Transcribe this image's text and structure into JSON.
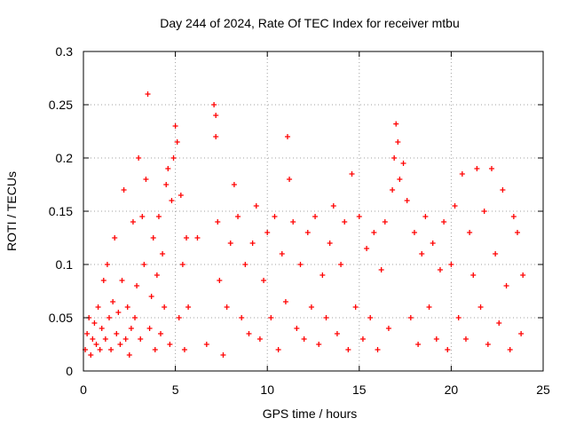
{
  "chart_data": {
    "type": "scatter",
    "title": "Day 244 of 2024, Rate Of TEC Index for receiver mtbu",
    "xlabel": "GPS time / hours",
    "ylabel": "ROTI / TECUs",
    "xlim": [
      0,
      25
    ],
    "ylim": [
      0,
      0.3
    ],
    "x_ticks": [
      "0",
      "5",
      "10",
      "15",
      "20",
      "25"
    ],
    "y_ticks": [
      "0",
      "0.05",
      "0.1",
      "0.15",
      "0.2",
      "0.25",
      "0.3"
    ],
    "grid": true,
    "marker": "+",
    "color": "#ff0000",
    "series": [
      {
        "points": [
          [
            0.1,
            0.02
          ],
          [
            0.2,
            0.035
          ],
          [
            0.3,
            0.05
          ],
          [
            0.4,
            0.015
          ],
          [
            0.5,
            0.03
          ],
          [
            0.6,
            0.045
          ],
          [
            0.7,
            0.025
          ],
          [
            0.8,
            0.06
          ],
          [
            0.9,
            0.02
          ],
          [
            1.0,
            0.04
          ],
          [
            1.1,
            0.085
          ],
          [
            1.2,
            0.03
          ],
          [
            1.3,
            0.1
          ],
          [
            1.4,
            0.05
          ],
          [
            1.5,
            0.02
          ],
          [
            1.6,
            0.065
          ],
          [
            1.7,
            0.125
          ],
          [
            1.8,
            0.035
          ],
          [
            1.9,
            0.055
          ],
          [
            2.0,
            0.025
          ],
          [
            2.1,
            0.085
          ],
          [
            2.2,
            0.17
          ],
          [
            2.3,
            0.03
          ],
          [
            2.4,
            0.06
          ],
          [
            2.5,
            0.015
          ],
          [
            2.6,
            0.04
          ],
          [
            2.7,
            0.14
          ],
          [
            2.8,
            0.05
          ],
          [
            2.9,
            0.08
          ],
          [
            3.0,
            0.2
          ],
          [
            3.1,
            0.03
          ],
          [
            3.2,
            0.145
          ],
          [
            3.3,
            0.1
          ],
          [
            3.4,
            0.18
          ],
          [
            3.5,
            0.26
          ],
          [
            3.6,
            0.04
          ],
          [
            3.7,
            0.07
          ],
          [
            3.8,
            0.125
          ],
          [
            3.9,
            0.02
          ],
          [
            4.0,
            0.09
          ],
          [
            4.1,
            0.145
          ],
          [
            4.2,
            0.035
          ],
          [
            4.3,
            0.11
          ],
          [
            4.4,
            0.06
          ],
          [
            4.5,
            0.175
          ],
          [
            4.6,
            0.19
          ],
          [
            4.7,
            0.025
          ],
          [
            4.8,
            0.16
          ],
          [
            4.9,
            0.2
          ],
          [
            5.0,
            0.23
          ],
          [
            5.1,
            0.215
          ],
          [
            5.2,
            0.05
          ],
          [
            5.3,
            0.165
          ],
          [
            5.4,
            0.1
          ],
          [
            5.5,
            0.02
          ],
          [
            5.6,
            0.125
          ],
          [
            5.7,
            0.06
          ],
          [
            6.2,
            0.125
          ],
          [
            6.7,
            0.025
          ],
          [
            7.1,
            0.25
          ],
          [
            7.2,
            0.24
          ],
          [
            7.2,
            0.22
          ],
          [
            7.3,
            0.14
          ],
          [
            7.4,
            0.085
          ],
          [
            7.6,
            0.015
          ],
          [
            7.8,
            0.06
          ],
          [
            8.0,
            0.12
          ],
          [
            8.2,
            0.175
          ],
          [
            8.4,
            0.145
          ],
          [
            8.6,
            0.05
          ],
          [
            8.8,
            0.1
          ],
          [
            9.0,
            0.035
          ],
          [
            9.2,
            0.12
          ],
          [
            9.4,
            0.155
          ],
          [
            9.6,
            0.03
          ],
          [
            9.8,
            0.085
          ],
          [
            10.0,
            0.13
          ],
          [
            10.2,
            0.05
          ],
          [
            10.4,
            0.145
          ],
          [
            10.6,
            0.02
          ],
          [
            10.8,
            0.11
          ],
          [
            11.0,
            0.065
          ],
          [
            11.1,
            0.22
          ],
          [
            11.2,
            0.18
          ],
          [
            11.4,
            0.14
          ],
          [
            11.6,
            0.04
          ],
          [
            11.8,
            0.1
          ],
          [
            12.0,
            0.03
          ],
          [
            12.2,
            0.13
          ],
          [
            12.4,
            0.06
          ],
          [
            12.6,
            0.145
          ],
          [
            12.8,
            0.025
          ],
          [
            13.0,
            0.09
          ],
          [
            13.2,
            0.05
          ],
          [
            13.4,
            0.12
          ],
          [
            13.6,
            0.155
          ],
          [
            13.8,
            0.035
          ],
          [
            14.0,
            0.1
          ],
          [
            14.2,
            0.14
          ],
          [
            14.4,
            0.02
          ],
          [
            14.6,
            0.185
          ],
          [
            14.8,
            0.06
          ],
          [
            15.0,
            0.145
          ],
          [
            15.2,
            0.03
          ],
          [
            15.4,
            0.115
          ],
          [
            15.6,
            0.05
          ],
          [
            15.8,
            0.13
          ],
          [
            16.0,
            0.02
          ],
          [
            16.2,
            0.095
          ],
          [
            16.4,
            0.14
          ],
          [
            16.6,
            0.04
          ],
          [
            16.8,
            0.17
          ],
          [
            16.9,
            0.2
          ],
          [
            17.0,
            0.232
          ],
          [
            17.1,
            0.215
          ],
          [
            17.2,
            0.18
          ],
          [
            17.4,
            0.195
          ],
          [
            17.6,
            0.16
          ],
          [
            17.8,
            0.05
          ],
          [
            18.0,
            0.13
          ],
          [
            18.2,
            0.025
          ],
          [
            18.4,
            0.11
          ],
          [
            18.6,
            0.145
          ],
          [
            18.8,
            0.06
          ],
          [
            19.0,
            0.12
          ],
          [
            19.2,
            0.03
          ],
          [
            19.4,
            0.095
          ],
          [
            19.6,
            0.14
          ],
          [
            19.8,
            0.02
          ],
          [
            20.0,
            0.1
          ],
          [
            20.2,
            0.155
          ],
          [
            20.4,
            0.05
          ],
          [
            20.6,
            0.185
          ],
          [
            20.8,
            0.03
          ],
          [
            21.0,
            0.13
          ],
          [
            21.2,
            0.09
          ],
          [
            21.4,
            0.19
          ],
          [
            21.6,
            0.06
          ],
          [
            21.8,
            0.15
          ],
          [
            22.0,
            0.025
          ],
          [
            22.2,
            0.19
          ],
          [
            22.4,
            0.11
          ],
          [
            22.6,
            0.045
          ],
          [
            22.8,
            0.17
          ],
          [
            23.0,
            0.08
          ],
          [
            23.2,
            0.02
          ],
          [
            23.4,
            0.145
          ],
          [
            23.6,
            0.13
          ],
          [
            23.8,
            0.035
          ],
          [
            23.9,
            0.09
          ]
        ]
      }
    ]
  }
}
